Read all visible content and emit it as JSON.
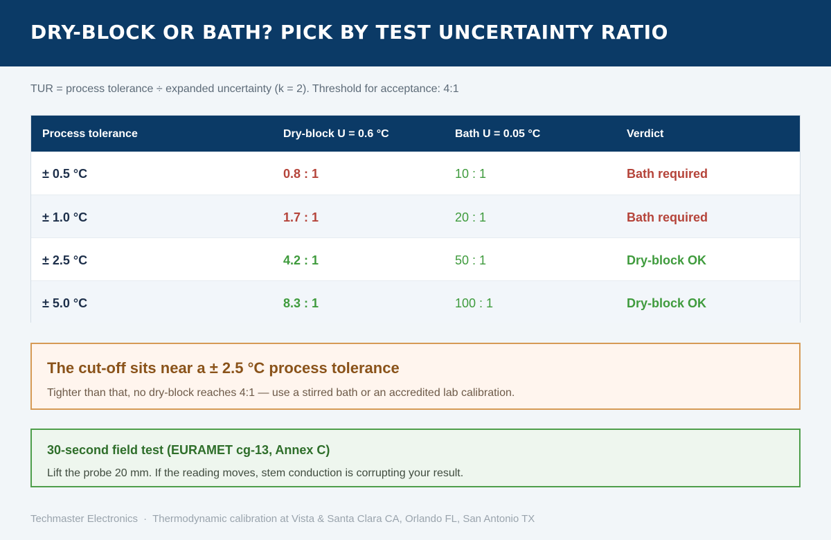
{
  "header": {
    "title": "Dry-block or bath? Pick by test uncertainty ratio"
  },
  "formula": "TUR = process tolerance ÷ expanded uncertainty (k = 2).  Threshold for acceptance: 4:1",
  "table": {
    "columns": [
      "Process tolerance",
      "Dry-block  U = 0.6 °C",
      "Bath  U = 0.05 °C",
      "Verdict"
    ],
    "rows": [
      {
        "tolerance": "± 0.5 °C",
        "dry_block": "0.8 : 1",
        "bath": "10 : 1",
        "verdict": "Bath required"
      },
      {
        "tolerance": "± 1.0 °C",
        "dry_block": "1.7 : 1",
        "bath": "20 : 1",
        "verdict": "Bath required"
      },
      {
        "tolerance": "± 2.5 °C",
        "dry_block": "4.2 : 1",
        "bath": "50 : 1",
        "verdict": "Dry-block OK"
      },
      {
        "tolerance": "± 5.0 °C",
        "dry_block": "8.3 : 1",
        "bath": "100 : 1",
        "verdict": "Dry-block OK"
      }
    ]
  },
  "callout": {
    "title": "The cut-off sits near a ± 2.5 °C process tolerance",
    "text": "Tighter than that, no dry-block reaches 4:1 — use a stirred bath or an accredited lab calibration."
  },
  "field_test": {
    "title": "30-second field test (EURAMET cg-13, Annex C)",
    "text": "Lift the probe 20 mm. If the reading moves, stem conduction is corrupting your result."
  },
  "footer": {
    "company": "Techmaster Electronics",
    "separator": "·",
    "locations": "Thermodynamic calibration at Vista & Santa Clara CA, Orlando FL, San Antonio TX"
  },
  "colors": {
    "header_bg": "#0b3a66",
    "fail": "#b5443a",
    "pass": "#3f9b3d",
    "callout_border": "#d69a55",
    "field_border": "#4e9e4a"
  }
}
